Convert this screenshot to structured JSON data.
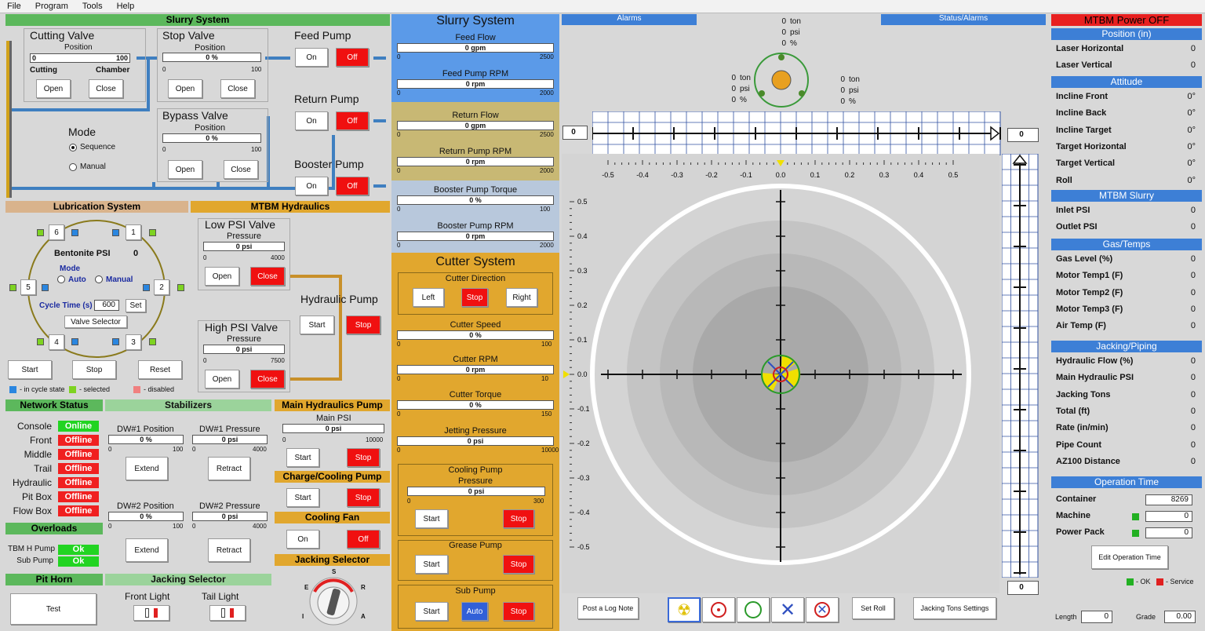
{
  "menu": [
    "File",
    "Program",
    "Tools",
    "Help"
  ],
  "slurry_left": {
    "title": "Slurry System",
    "cutting_valve": {
      "title": "Cutting Valve",
      "pos_label": "Position",
      "min": "0",
      "max": "100",
      "lab_a": "Cutting",
      "lab_b": "Chamber",
      "open": "Open",
      "close": "Close"
    },
    "stop_valve": {
      "title": "Stop Valve",
      "pos_label": "Position",
      "value": "0 %",
      "min": "0",
      "max": "100",
      "open": "Open",
      "close": "Close"
    },
    "bypass_valve": {
      "title": "Bypass Valve",
      "pos_label": "Position",
      "value": "0 %",
      "min": "0",
      "max": "100",
      "open": "Open",
      "close": "Close"
    },
    "feed_pump": {
      "title": "Feed Pump",
      "on": "On",
      "off": "Off"
    },
    "return_pump": {
      "title": "Return Pump",
      "on": "On",
      "off": "Off"
    },
    "booster_pump": {
      "title": "Booster Pump",
      "on": "On",
      "off": "Off"
    },
    "mode": {
      "title": "Mode",
      "opt1": "Sequence",
      "opt2": "Manual"
    }
  },
  "lubrication": {
    "title": "Lubrication System",
    "bentonite_label": "Bentonite PSI",
    "bentonite_value": "0",
    "mode_label": "Mode",
    "auto": "Auto",
    "manual": "Manual",
    "cycle_label": "Cycle Time (s)",
    "cycle_value": "600",
    "set": "Set",
    "valve_selector": "Valve Selector",
    "n1": "1",
    "n2": "2",
    "n3": "3",
    "n4": "4",
    "n5": "5",
    "n6": "6",
    "start": "Start",
    "stop": "Stop",
    "reset": "Reset",
    "leg1": "- in cycle state",
    "leg2": "- selected",
    "leg3": "- disabled"
  },
  "mtbm_hydraulics": {
    "title": "MTBM Hydraulics",
    "low": {
      "title": "Low PSI Valve",
      "label": "Pressure",
      "value": "0 psi",
      "min": "0",
      "max": "4000",
      "open": "Open",
      "close": "Close"
    },
    "high": {
      "title": "High PSI Valve",
      "label": "Pressure",
      "value": "0 psi",
      "min": "0",
      "max": "7500",
      "open": "Open",
      "close": "Close"
    },
    "pump": {
      "title": "Hydraulic Pump",
      "start": "Start",
      "stop": "Stop"
    }
  },
  "network": {
    "title": "Network Status",
    "rows": [
      {
        "name": "Console",
        "status": "Online"
      },
      {
        "name": "Front",
        "status": "Offline"
      },
      {
        "name": "Middle",
        "status": "Offline"
      },
      {
        "name": "Trail",
        "status": "Offline"
      },
      {
        "name": "Hydraulic",
        "status": "Offline"
      },
      {
        "name": "Pit Box",
        "status": "Offline"
      },
      {
        "name": "Flow Box",
        "status": "Offline"
      }
    ]
  },
  "overloads": {
    "title": "Overloads",
    "rows": [
      {
        "name": "TBM H Pump",
        "status": "Ok"
      },
      {
        "name": "Sub Pump",
        "status": "Ok"
      }
    ]
  },
  "pit_horn": {
    "title": "Pit Horn",
    "test": "Test"
  },
  "stabilizers": {
    "title": "Stabilizers",
    "dw1pos": "DW#1 Position",
    "dw1pos_v": "0 %",
    "dw1pres": "DW#1 Pressure",
    "dw1pres_v": "0 psi",
    "dw2pos": "DW#2 Position",
    "dw2pos_v": "0 %",
    "dw2pres": "DW#2 Pressure",
    "dw2pres_v": "0 psi",
    "min": "0",
    "max100": "100",
    "max4000": "4000",
    "extend": "Extend",
    "retract": "Retract"
  },
  "jacking_selector": {
    "title": "Jacking Selector",
    "front": "Front Light",
    "tail": "Tail Light"
  },
  "main_hyd_pump": {
    "title": "Main Hydraulics Pump",
    "label": "Main PSI",
    "value": "0 psi",
    "min": "0",
    "max": "10000",
    "start": "Start",
    "stop": "Stop"
  },
  "charge_pump": {
    "title": "Charge/Cooling Pump",
    "start": "Start",
    "stop": "Stop"
  },
  "cooling_fan": {
    "title": "Cooling Fan",
    "on": "On",
    "off": "Off"
  },
  "jacking_sel2": {
    "title": "Jacking Selector",
    "s": "S",
    "e": "E",
    "r": "R",
    "i": "I",
    "a": "A"
  },
  "slurry_mid": {
    "title": "Slurry System",
    "feed_flow": "Feed Flow",
    "feed_flow_v": "0 gpm",
    "ff_max": "2500",
    "feed_rpm": "Feed Pump RPM",
    "feed_rpm_v": "0 rpm",
    "fr_max": "2000",
    "return_flow": "Return Flow",
    "return_flow_v": "0 gpm",
    "rf_max": "2500",
    "return_rpm": "Return Pump RPM",
    "return_rpm_v": "0 rpm",
    "rr_max": "2000",
    "booster_torque": "Booster Pump Torque",
    "booster_torque_v": "0 %",
    "bt_max": "100",
    "booster_rpm": "Booster Pump RPM",
    "booster_rpm_v": "0 rpm",
    "br_max": "2000",
    "min": "0"
  },
  "cutter": {
    "title": "Cutter System",
    "direction": "Cutter Direction",
    "left": "Left",
    "stop": "Stop",
    "right": "Right",
    "speed": "Cutter Speed",
    "speed_v": "0 %",
    "speed_max": "100",
    "rpm": "Cutter RPM",
    "rpm_v": "0 rpm",
    "rpm_max": "10",
    "torque": "Cutter Torque",
    "torque_v": "0 %",
    "torque_max": "150",
    "jet": "Jetting Pressure",
    "jet_v": "0 psi",
    "jet_max": "10000",
    "min": "0"
  },
  "cooling_pump": {
    "title": "Cooling Pump",
    "label": "Pressure",
    "value": "0 psi",
    "min": "0",
    "max": "300",
    "start": "Start",
    "stop": "Stop"
  },
  "grease_pump": {
    "title": "Grease Pump",
    "start": "Start",
    "stop": "Stop"
  },
  "sub_pump": {
    "title": "Sub Pump",
    "start": "Start",
    "auto": "Auto",
    "stop": "Stop"
  },
  "center": {
    "alarms": "Alarms",
    "status_alarms": "Status/Alarms",
    "top": {
      "ton": "0",
      "ton_u": "ton",
      "psi": "0",
      "psi_u": "psi",
      "pct": "0",
      "pct_u": "%"
    },
    "left": {
      "ton": "0",
      "ton_u": "ton",
      "psi": "0",
      "psi_u": "psi",
      "pct": "0",
      "pct_u": "%"
    },
    "right": {
      "ton": "0",
      "ton_u": "ton",
      "psi": "0",
      "psi_u": "psi",
      "pct": "0",
      "pct_u": "%"
    },
    "hval_left": "0",
    "hval_right": "0",
    "vval": "0",
    "xticks": [
      "-0.5",
      "-0.4",
      "-0.3",
      "-0.2",
      "-0.1",
      "0.0",
      "0.1",
      "0.2",
      "0.3",
      "0.4",
      "0.5"
    ],
    "yticks": [
      "0.5",
      "0.4",
      "0.3",
      "0.2",
      "0.1",
      "0.0",
      "-0.1",
      "-0.2",
      "-0.3",
      "-0.4",
      "-0.5"
    ],
    "post_log": "Post a Log Note",
    "set_roll": "Set Roll",
    "jacking_settings": "Jacking Tons Settings"
  },
  "right": {
    "power": "MTBM Power OFF",
    "position": {
      "title": "Position (in)",
      "rows": [
        {
          "k": "Laser Horizontal",
          "v": "0"
        },
        {
          "k": "Laser Vertical",
          "v": "0"
        }
      ]
    },
    "attitude": {
      "title": "Attitude",
      "rows": [
        {
          "k": "Incline Front",
          "v": "0°"
        },
        {
          "k": "Incline Back",
          "v": "0°"
        },
        {
          "k": "Incline Target",
          "v": "0°"
        },
        {
          "k": "Target Horizontal",
          "v": "0°"
        },
        {
          "k": "Target Vertical",
          "v": "0°"
        },
        {
          "k": "Roll",
          "v": "0°"
        }
      ]
    },
    "slurry": {
      "title": "MTBM Slurry",
      "rows": [
        {
          "k": "Inlet PSI",
          "v": "0"
        },
        {
          "k": "Outlet PSI",
          "v": "0"
        }
      ]
    },
    "gas": {
      "title": "Gas/Temps",
      "rows": [
        {
          "k": "Gas Level (%)",
          "v": "0"
        },
        {
          "k": "Motor Temp1 (F)",
          "v": "0"
        },
        {
          "k": "Motor Temp2 (F)",
          "v": "0"
        },
        {
          "k": "Motor Temp3 (F)",
          "v": "0"
        },
        {
          "k": "Air Temp (F)",
          "v": "0"
        }
      ]
    },
    "jacking": {
      "title": "Jacking/Piping",
      "rows": [
        {
          "k": "Hydraulic Flow (%)",
          "v": "0"
        },
        {
          "k": "Main Hydraulic PSI",
          "v": "0"
        },
        {
          "k": "Jacking Tons",
          "v": "0"
        },
        {
          "k": "Total (ft)",
          "v": "0"
        },
        {
          "k": "Rate (in/min)",
          "v": "0"
        },
        {
          "k": "Pipe Count",
          "v": "0"
        },
        {
          "k": "AZ100 Distance",
          "v": "0"
        }
      ]
    },
    "optime": {
      "title": "Operation Time",
      "container": "Container",
      "container_v": "8269",
      "machine": "Machine",
      "machine_v": "0",
      "powerpack": "Power Pack",
      "powerpack_v": "0",
      "edit": "Edit Operation Time",
      "ok": "- OK",
      "service": "- Service"
    },
    "length": "Length",
    "length_v": "0",
    "grade": "Grade",
    "grade_v": "0.00"
  }
}
